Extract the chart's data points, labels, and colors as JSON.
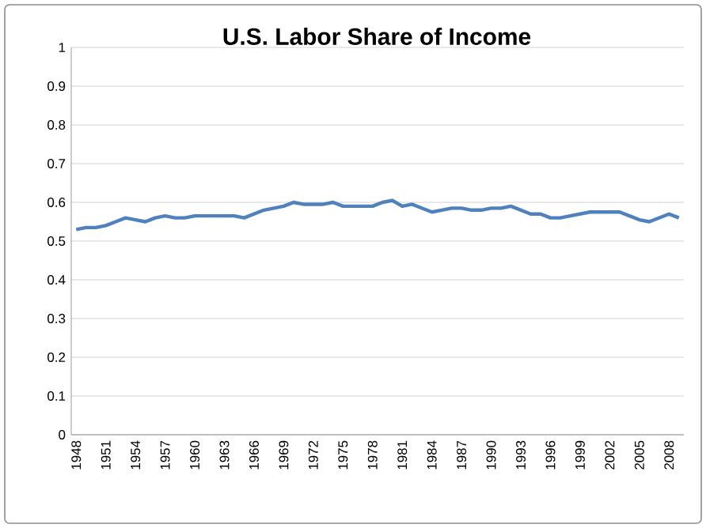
{
  "chart_data": {
    "type": "line",
    "title": "U.S. Labor Share of Income",
    "categories": [
      "1948",
      null,
      null,
      "1951",
      null,
      null,
      "1954",
      null,
      null,
      "1957",
      null,
      null,
      "1960",
      null,
      null,
      "1963",
      null,
      null,
      "1966",
      null,
      null,
      "1969",
      null,
      null,
      "1972",
      null,
      null,
      "1975",
      null,
      null,
      "1978",
      null,
      null,
      "1981",
      null,
      null,
      "1984",
      null,
      null,
      "1987",
      null,
      null,
      "1990",
      null,
      null,
      "1993",
      null,
      null,
      "1996",
      null,
      null,
      "1999",
      null,
      null,
      "2002",
      null,
      null,
      "2005",
      null,
      null,
      "2008",
      null
    ],
    "series": [
      {
        "color": "#4f81bd",
        "values": [
          0.53,
          0.535,
          0.535,
          0.54,
          0.55,
          0.56,
          0.555,
          0.55,
          0.56,
          0.565,
          0.56,
          0.56,
          0.565,
          0.565,
          0.565,
          0.565,
          0.565,
          0.56,
          0.57,
          0.58,
          0.585,
          0.59,
          0.6,
          0.595,
          0.595,
          0.595,
          0.6,
          0.59,
          0.59,
          0.59,
          0.59,
          0.6,
          0.605,
          0.59,
          0.595,
          0.585,
          0.575,
          0.58,
          0.585,
          0.585,
          0.58,
          0.58,
          0.585,
          0.585,
          0.59,
          0.58,
          0.57,
          0.57,
          0.56,
          0.56,
          0.565,
          0.57,
          0.575,
          0.575,
          0.575,
          0.575,
          0.565,
          0.555,
          0.55,
          0.56,
          0.57,
          0.56
        ]
      }
    ],
    "ylim": [
      0,
      1
    ],
    "yticks": [
      0,
      0.1,
      0.2,
      0.3,
      0.4,
      0.5,
      0.6,
      0.7,
      0.8,
      0.9,
      1
    ],
    "grid": "y",
    "legend": false,
    "marker": "none",
    "line_style": "solid"
  }
}
